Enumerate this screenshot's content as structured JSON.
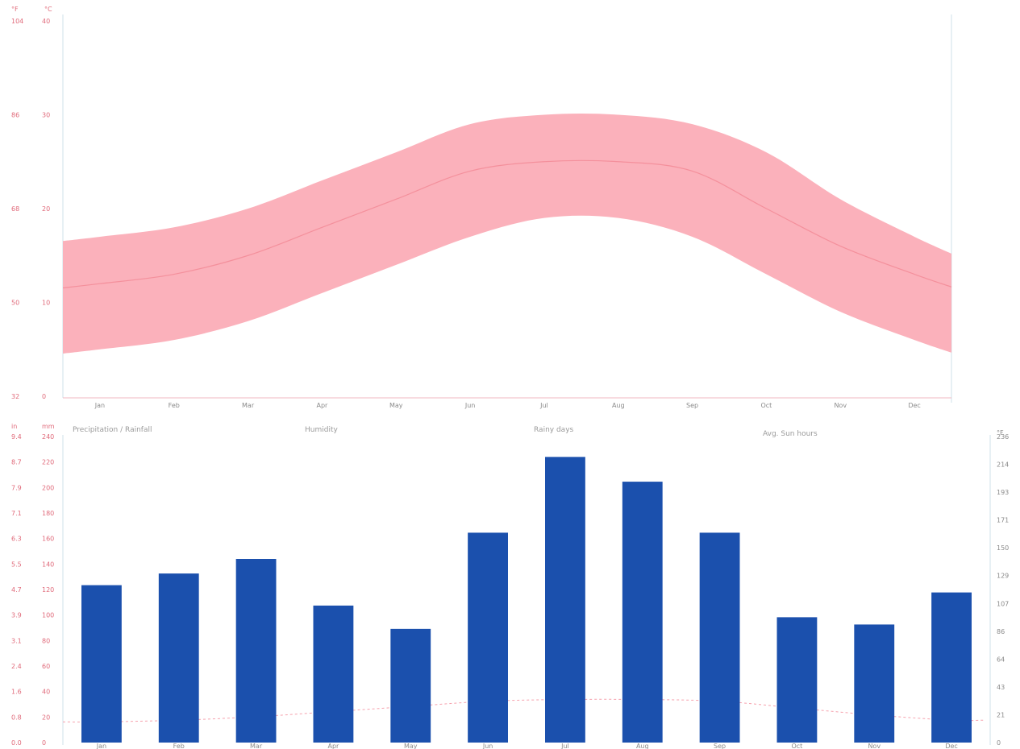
{
  "charts": {
    "temperature": {
      "chart_data": {
        "type": "area",
        "x": [
          1,
          2,
          3,
          4,
          5,
          6,
          7,
          8,
          9,
          10,
          11,
          12
        ],
        "x_tick_labels": [
          "Jan",
          "Feb",
          "Mar",
          "Apr",
          "May",
          "Jun",
          "Jul",
          "Aug",
          "Sep",
          "Oct",
          "Nov",
          "Dec"
        ],
        "series": [
          {
            "values": [
              12,
              13,
              15,
              18,
              21,
              24,
              25,
              25,
              24,
              20,
              16,
              13
            ]
          },
          {
            "values": [
              5,
              6,
              8,
              11,
              14,
              17,
              19,
              19,
              17,
              13,
              9,
              6
            ]
          },
          {
            "values": [
              17,
              18,
              20,
              23,
              26,
              29,
              30,
              30,
              29,
              26,
              21,
              17
            ]
          }
        ],
        "ylim": [
          0,
          40
        ],
        "left_axis_label": "°F",
        "right_axis_label": "°C",
        "left_ticks": [
          "32",
          "50",
          "68",
          "86",
          "104"
        ],
        "right_ticks": [
          "0",
          "10",
          "20",
          "30",
          "40"
        ],
        "colors": {
          "band": "#fbb1bb",
          "line": "#f4909c"
        }
      }
    },
    "precipitation": {
      "chart_data": {
        "type": "bar",
        "categories": [
          "Jan",
          "Feb",
          "Mar",
          "Apr",
          "May",
          "Jun",
          "Jul",
          "Aug",
          "Sep",
          "Oct",
          "Nov",
          "Dec"
        ],
        "values": [
          108,
          116,
          126,
          94,
          78,
          144,
          196,
          179,
          144,
          86,
          81,
          103
        ],
        "ylim": [
          0,
          210
        ],
        "left_axis_label": "in",
        "mid_axis_label": "mm",
        "right_axis_label": "°F",
        "left_ticks": [
          "0.0",
          "0.8",
          "1.6",
          "2.4",
          "3.1",
          "3.9",
          "4.7",
          "5.5",
          "6.3",
          "7.1",
          "7.9",
          "8.7",
          "9.4"
        ],
        "mid_ticks": [
          "0",
          "20",
          "40",
          "60",
          "80",
          "100",
          "120",
          "140",
          "160",
          "180",
          "200",
          "220",
          "240"
        ],
        "right_ticks": [
          "0",
          "21",
          "43",
          "64",
          "86",
          "107",
          "129",
          "150",
          "171",
          "193",
          "214",
          "236"
        ],
        "headers": [
          "Precipitation / Rainfall",
          "Humidity",
          "Rainy days",
          "Avg. Sun hours"
        ],
        "temperature_line": [
          12,
          13,
          15,
          18,
          21,
          24,
          25,
          25,
          24,
          20,
          16,
          13
        ],
        "temperature_line_max": 80,
        "colors": {
          "bar": "#1b50ad",
          "line": "#f6a1ad"
        }
      }
    }
  }
}
